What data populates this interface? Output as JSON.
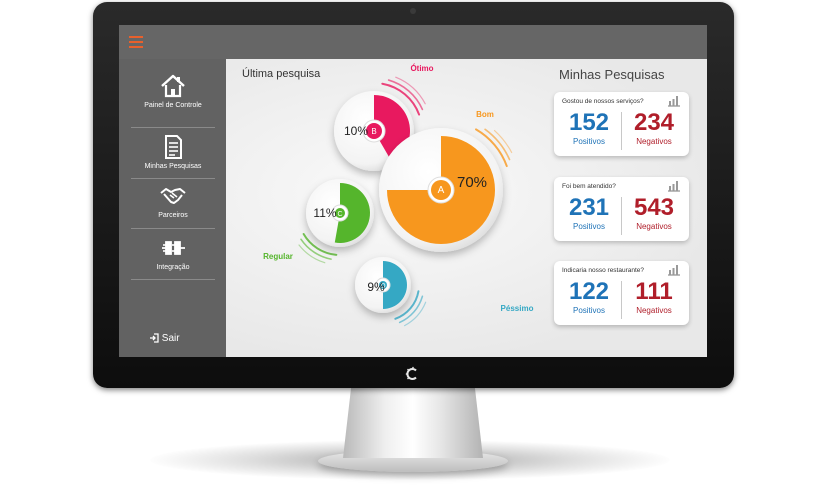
{
  "sidebar": {
    "items": [
      {
        "label": "Painel de Controle",
        "icon": "home-icon"
      },
      {
        "label": "Minhas Pesquisas",
        "icon": "document-icon"
      },
      {
        "label": "Parceiros",
        "icon": "handshake-icon"
      },
      {
        "label": "Integração",
        "icon": "plug-icon"
      }
    ],
    "logout_label": "Sair"
  },
  "main": {
    "section_title": "Última pesquisa"
  },
  "chart_data": {
    "type": "pie",
    "categories": [
      "Ótimo",
      "Bom",
      "Regular",
      "Péssimo"
    ],
    "values": [
      10,
      70,
      11,
      9
    ],
    "value_labels": [
      "10%",
      "70%",
      "11%",
      "9%"
    ],
    "markers": [
      "B",
      "A",
      "C",
      "D"
    ],
    "colors": [
      "#e8195f",
      "#f7971e",
      "#55b52c",
      "#35a8c4"
    ]
  },
  "panel": {
    "title": "Minhas Pesquisas",
    "cards": [
      {
        "question": "Gostou de nossos serviços?",
        "positive": "152",
        "positive_label": "Positivos",
        "negative": "234",
        "negative_label": "Negativos"
      },
      {
        "question": "Foi bem atendido?",
        "positive": "231",
        "positive_label": "Positivos",
        "negative": "543",
        "negative_label": "Negativos"
      },
      {
        "question": "Indicaria nosso restaurante?",
        "positive": "122",
        "positive_label": "Positivos",
        "negative": "111",
        "negative_label": "Negativos"
      }
    ]
  },
  "colors": {
    "accent": "#e8602c",
    "positive": "#1f73b7",
    "negative": "#b01e2a",
    "sidebar": "#626262",
    "topbar": "#666666"
  },
  "brand": {
    "icon": "brand-logo-icon"
  }
}
